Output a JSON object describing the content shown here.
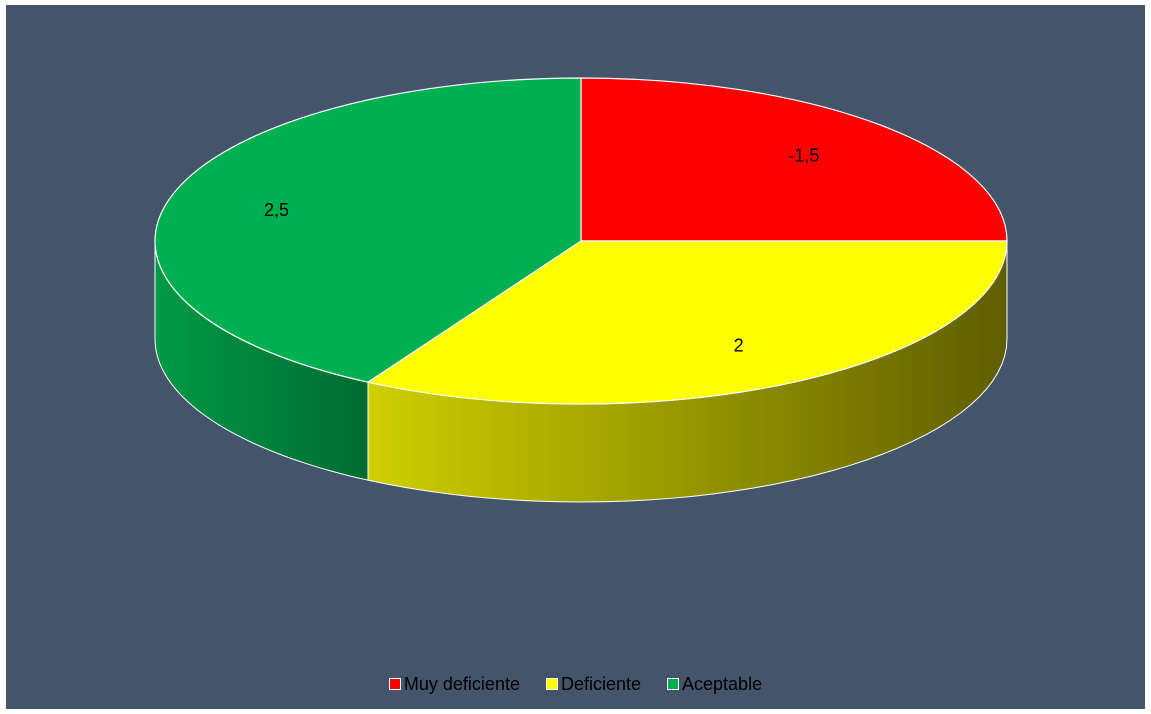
{
  "chart_data": {
    "type": "pie",
    "style": "3d",
    "categories": [
      "Muy deficiente",
      "Deficiente",
      "Aceptable"
    ],
    "values": [
      -1.5,
      2,
      2.5
    ],
    "value_labels": [
      "-1,5",
      "2",
      "2,5"
    ],
    "colors": [
      "#ff0000",
      "#ffff00",
      "#00b050"
    ],
    "legend_position": "bottom"
  },
  "background_color": "#44546a"
}
